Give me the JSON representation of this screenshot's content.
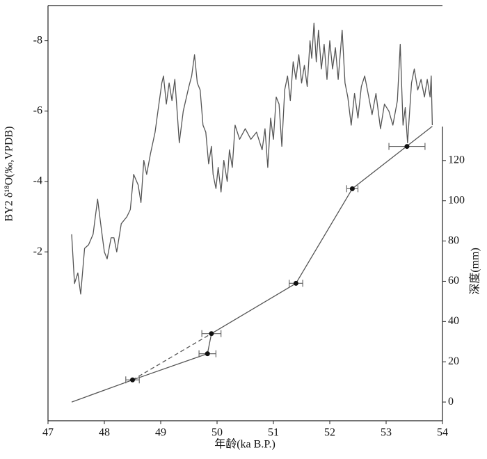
{
  "chart_data": {
    "type": "line",
    "xlabel": "年龄(ka B.P.)",
    "ylabel": "BY2 δ¹⁸O(‰,VPDB)",
    "y2label": "深度(mm)",
    "xlim": [
      47,
      54
    ],
    "xticks": [
      47,
      48,
      49,
      50,
      51,
      52,
      53,
      54
    ],
    "ylim": [
      2.8,
      -9
    ],
    "yticks": [
      -8,
      -6,
      -4,
      -2
    ],
    "y2lim": [
      -9.3,
      197
    ],
    "y2ticks": [
      0,
      20,
      40,
      60,
      80,
      100,
      120
    ],
    "series": [
      {
        "color": "#555555",
        "x": [
          47.42,
          47.47,
          47.53,
          47.58,
          47.65,
          47.72,
          47.8,
          47.88,
          47.95,
          48.0,
          48.05,
          48.12,
          48.17,
          48.22,
          48.3,
          48.4,
          48.46,
          48.52,
          48.6,
          48.65,
          48.7,
          48.75,
          48.82,
          48.9,
          48.95,
          49.02,
          49.05,
          49.1,
          49.15,
          49.2,
          49.25,
          49.3,
          49.33,
          49.4,
          49.5,
          49.55,
          49.6,
          49.65,
          49.7,
          49.75,
          49.8,
          49.85,
          49.9,
          49.93,
          49.98,
          50.02,
          50.07,
          50.12,
          50.18,
          50.22,
          50.27,
          50.32,
          50.4,
          50.5,
          50.6,
          50.7,
          50.8,
          50.85,
          50.9,
          50.95,
          51.0,
          51.05,
          51.1,
          51.15,
          51.2,
          51.25,
          51.3,
          51.35,
          51.4,
          51.45,
          51.5,
          51.55,
          51.6,
          51.65,
          51.68,
          51.72,
          51.76,
          51.8,
          51.85,
          51.9,
          51.95,
          52.0,
          52.05,
          52.1,
          52.15,
          52.22,
          52.27,
          52.32,
          52.38,
          52.44,
          52.5,
          52.56,
          52.62,
          52.68,
          52.75,
          52.82,
          52.9,
          52.97,
          53.05,
          53.12,
          53.2,
          53.25,
          53.3,
          53.34,
          53.38,
          53.45,
          53.5,
          53.56,
          53.62,
          53.68,
          53.73,
          53.78,
          53.8,
          53.82
        ],
        "values": [
          -2.5,
          -1.1,
          -1.4,
          -0.8,
          -2.1,
          -2.2,
          -2.5,
          -3.5,
          -2.6,
          -2.0,
          -1.8,
          -2.4,
          -2.4,
          -2.0,
          -2.8,
          -3.0,
          -3.2,
          -4.2,
          -3.9,
          -3.4,
          -4.6,
          -4.2,
          -4.8,
          -5.4,
          -6.0,
          -6.8,
          -7.0,
          -6.2,
          -6.8,
          -6.3,
          -6.9,
          -5.8,
          -5.1,
          -6.0,
          -6.7,
          -7.0,
          -7.6,
          -6.8,
          -6.6,
          -5.6,
          -5.4,
          -4.5,
          -5.0,
          -4.2,
          -3.8,
          -4.4,
          -3.7,
          -4.6,
          -4.0,
          -4.9,
          -4.4,
          -5.6,
          -5.2,
          -5.5,
          -5.2,
          -5.4,
          -4.9,
          -5.5,
          -4.4,
          -5.8,
          -5.2,
          -6.4,
          -6.2,
          -5.0,
          -6.6,
          -7.0,
          -6.3,
          -7.4,
          -6.9,
          -7.6,
          -6.8,
          -7.3,
          -6.7,
          -8.0,
          -7.5,
          -8.5,
          -7.4,
          -8.3,
          -7.2,
          -7.9,
          -6.9,
          -8.0,
          -7.2,
          -7.8,
          -6.9,
          -8.3,
          -6.8,
          -6.4,
          -5.6,
          -6.5,
          -5.8,
          -6.7,
          -7.0,
          -6.5,
          -5.9,
          -6.5,
          -5.5,
          -6.2,
          -6.0,
          -5.6,
          -6.3,
          -7.9,
          -5.6,
          -6.1,
          -5.1,
          -6.8,
          -7.2,
          -6.6,
          -6.9,
          -6.4,
          -6.9,
          -6.4,
          -7.0,
          -5.6
        ]
      },
      {
        "color": "#555555",
        "axis": "y2",
        "x": [
          47.42,
          48.5,
          49.83,
          49.9,
          51.4,
          52.4,
          53.82
        ],
        "values": [
          0,
          11,
          24,
          34,
          59,
          106,
          137
        ]
      },
      {
        "color": "#555555",
        "axis": "y2",
        "dash": true,
        "x": [
          48.5,
          49.9
        ],
        "values": [
          11,
          34
        ]
      },
      {
        "color": "#111111",
        "axis": "y2",
        "marker": true,
        "x": [
          48.5,
          49.83,
          49.9,
          51.4,
          52.4,
          53.37
        ],
        "values": [
          11,
          24,
          34,
          59,
          106,
          127
        ],
        "x_errors": [
          0.12,
          0.15,
          0.17,
          0.12,
          0.1,
          0.32
        ]
      }
    ]
  }
}
